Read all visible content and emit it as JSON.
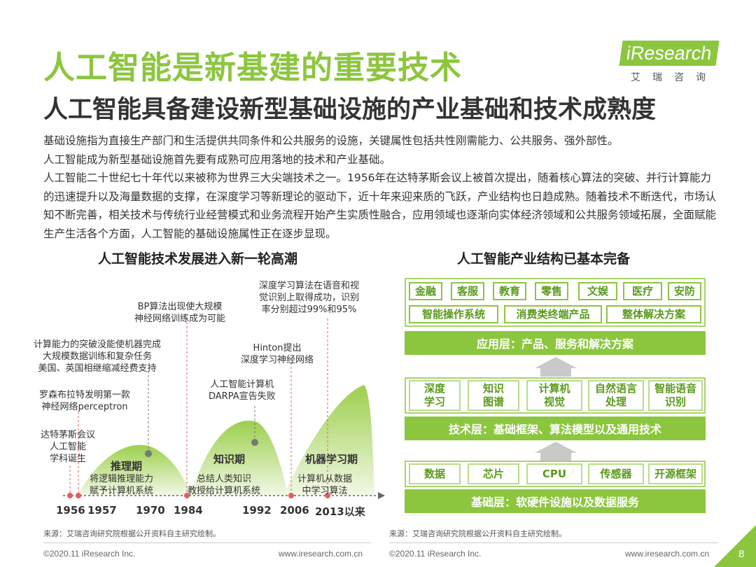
{
  "header": {
    "title": "人工智能是新基建的重要技术",
    "subtitle": "人工智能具备建设新型基础设施的产业基础和技术成熟度",
    "logo_text": "iResearch",
    "logo_cn": "艾瑞咨询"
  },
  "body": {
    "paragraphs": [
      "基础设施指为直接生产部门和生活提供共同条件和公共服务的设施，关键属性包括共性刚需能力、公共服务、强外部性。",
      "人工智能成为新型基础设施首先要有成熟可应用落地的技术和产业基础。",
      "人工智能二十世纪七十年代以来被称为世界三大尖端技术之一。1956年在达特茅斯会议上被首次提出，随着核心算法的突破、并行计算能力的迅速提升以及海量数据的支撑，在深度学习等新理论的驱动下，近十年来迎来质的飞跃，产业结构也日趋成熟。随着技术不断迭代，市场认知不断完善，相关技术与传统行业经营模式和业务流程开始产生实质性融合，应用领域也逐渐向实体经济领域和公共服务领域拓展，全面赋能生产生活各个方面，人工智能的基础设施属性正在逐步显现。"
    ]
  },
  "timeline": {
    "title": "人工智能技术发展进入新一轮高潮",
    "events": [
      {
        "text": "达特茅斯会议\n人工智能\n学科诞生"
      },
      {
        "text": "罗森布拉特发明第一款\n神经网络perceptron"
      },
      {
        "text": "计算能力的突破没能使机器完成\n大规模数据训练和复杂任务\n美国、英国相继缩减经费支持"
      },
      {
        "text": "BP算法出现使大规模\n神经网络训练成为可能"
      },
      {
        "text": "人工智能计算机\nDARPA宣告失败"
      },
      {
        "text": "Hinton提出\n深度学习神经网络"
      },
      {
        "text": "深度学习算法在语音和视\n觉识别上取得成功，识别\n率分别超过99%和95%"
      }
    ],
    "periods": [
      {
        "name": "推理期",
        "desc": "将逻辑推理能力\n赋予计算机系统"
      },
      {
        "name": "知识期",
        "desc": "总结人类知识\n教授给计算机系统"
      },
      {
        "name": "机器学习期",
        "desc": "计算机从数据\n中学习算法"
      }
    ],
    "years": [
      "1956",
      "1957",
      "1970",
      "1984",
      "1992",
      "2006",
      "2013以来"
    ]
  },
  "industry": {
    "title": "人工智能产业结构已基本完备",
    "app_items_row1": [
      "金融",
      "客服",
      "教育",
      "零售",
      "文娱",
      "医疗",
      "安防"
    ],
    "app_items_row2": [
      "智能操作系统",
      "消费类终端产品",
      "整体解决方案"
    ],
    "app_layer": "应用层：产品、服务和解决方案",
    "tech_items": [
      "深度\n学习",
      "知识\n图谱",
      "计算机\n视觉",
      "自然语言\n处理",
      "智能语音\n识别"
    ],
    "tech_layer": "技术层：基础框架、算法模型以及通用技术",
    "base_items": [
      "数据",
      "芯片",
      "CPU",
      "传感器",
      "开源框架"
    ],
    "base_layer": "基础层：软硬件设施以及数据服务"
  },
  "sources": {
    "left": "来源：艾瑞咨询研究院根据公开资料自主研究绘制。",
    "right": "来源：艾瑞咨询研究院根据公开资料自主研究绘制。"
  },
  "footer": {
    "left_copyright": "©2020.11 iResearch Inc.",
    "left_url": "www.iresearch.com.cn",
    "right_copyright": "©2020.11 iResearch Inc.",
    "right_url": "www.iresearch.com.cn",
    "page_number": "8"
  },
  "colors": {
    "accent": "#8cc63f",
    "dot": "#e85c5c",
    "dot_gray": "#777777"
  }
}
